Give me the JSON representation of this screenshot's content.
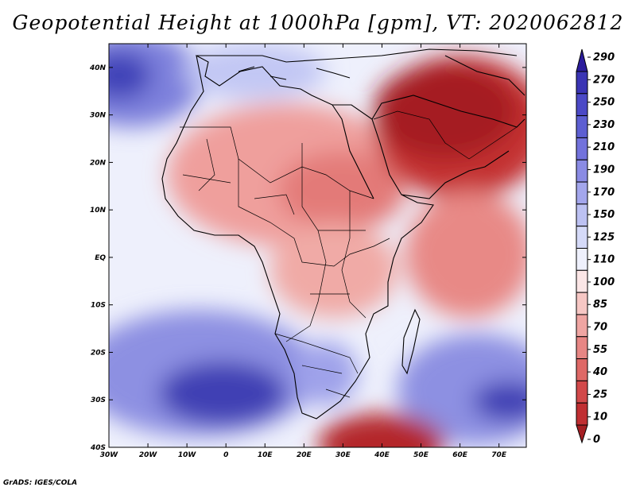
{
  "title": "Geopotential Height at 1000hPa [gpm], VT: 2020062812",
  "credit": "GrADS: IGES/COLA",
  "map": {
    "lon_range": [
      -30,
      77
    ],
    "lat_range": [
      -40,
      45
    ],
    "lon_ticks": [
      "30W",
      "20W",
      "10W",
      "0",
      "10E",
      "20E",
      "30E",
      "40E",
      "50E",
      "60E",
      "70E"
    ],
    "lat_ticks": [
      "40N",
      "30N",
      "20N",
      "10N",
      "EQ",
      "10S",
      "20S",
      "30S",
      "40S"
    ]
  },
  "colorbar": {
    "labels": [
      "290",
      "270",
      "250",
      "230",
      "210",
      "190",
      "170",
      "150",
      "125",
      "110",
      "100",
      "85",
      "70",
      "55",
      "40",
      "25",
      "10",
      "0"
    ],
    "colors": [
      "#2b1c9c",
      "#3a34b4",
      "#4b49c6",
      "#5d5fd2",
      "#7272dc",
      "#8a8be4",
      "#a3a6ec",
      "#bcc1f2",
      "#d5daf8",
      "#eef0fc",
      "#fbe6e6",
      "#f6c7c4",
      "#efa5a2",
      "#e78684",
      "#de6866",
      "#d2494a",
      "#c02f32",
      "#a51f23"
    ]
  }
}
